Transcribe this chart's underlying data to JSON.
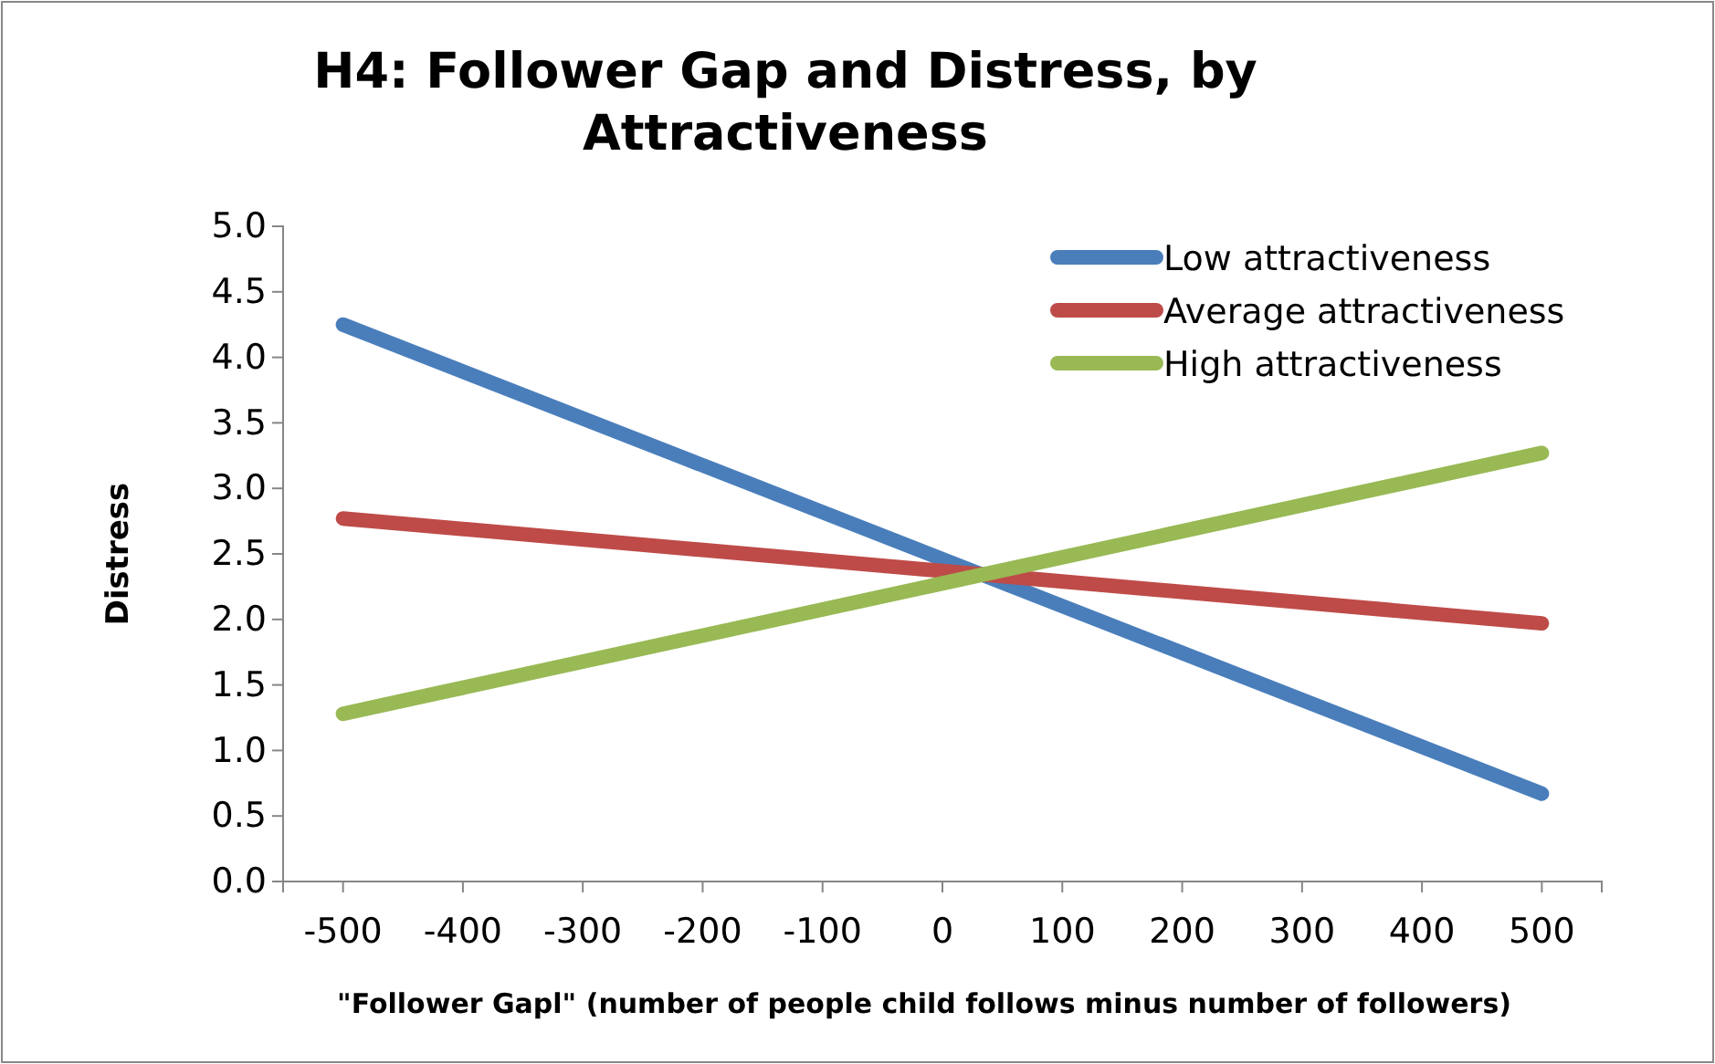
{
  "chart_data": {
    "type": "line",
    "title": "H4:  Follower Gap and Distress, by Attractiveness",
    "xlabel": "\"Follower Gapl\" (number of people child follows minus number of followers)",
    "ylabel": "Distress",
    "x": [
      -500,
      500
    ],
    "series": [
      {
        "name": "Low attractiveness",
        "color": "#4a7ebb",
        "values": [
          4.25,
          0.67
        ]
      },
      {
        "name": "Average attractiveness",
        "color": "#be4b48",
        "values": [
          2.77,
          1.97
        ]
      },
      {
        "name": "High attractiveness",
        "color": "#98b954",
        "values": [
          1.28,
          3.27
        ]
      }
    ],
    "xlim": [
      -550,
      550
    ],
    "xticks": [
      -500,
      -400,
      -300,
      -200,
      -100,
      0,
      100,
      200,
      300,
      400,
      500
    ],
    "ylim": [
      0,
      5
    ],
    "yticks": [
      {
        "value": 0,
        "label": "0.0"
      },
      {
        "value": 0.5,
        "label": "0.5"
      },
      {
        "value": 1,
        "label": "1.0"
      },
      {
        "value": 1.5,
        "label": "1.5"
      },
      {
        "value": 2,
        "label": "2.0"
      },
      {
        "value": 2.5,
        "label": "2.5"
      },
      {
        "value": 3,
        "label": "3.0"
      },
      {
        "value": 3.5,
        "label": "3.5"
      },
      {
        "value": 4,
        "label": "4.0"
      },
      {
        "value": 4.5,
        "label": "4.5"
      },
      {
        "value": 5,
        "label": "5.0"
      }
    ],
    "grid": false,
    "legend": "top right",
    "marker": "none",
    "line_style": "solid"
  }
}
